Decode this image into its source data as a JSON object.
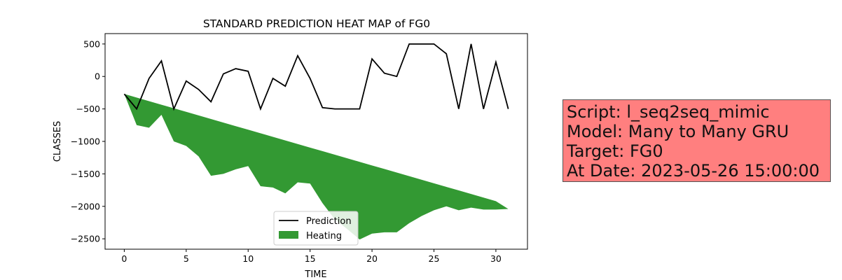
{
  "chart_data": {
    "type": "line",
    "title": "STANDARD PREDICTION HEAT MAP of FG0",
    "xlabel": "TIME",
    "ylabel": "CLASSES",
    "xlim": [
      -1.55,
      32.55
    ],
    "ylim": [
      -2660,
      660
    ],
    "xticks": [
      0,
      5,
      10,
      15,
      20,
      25,
      30
    ],
    "yticks": [
      500,
      0,
      -500,
      -1000,
      -1500,
      -2000,
      -2500
    ],
    "grid": false,
    "legend_position": "bottom-center",
    "series": [
      {
        "name": "Prediction",
        "kind": "line",
        "color": "#000000",
        "x": [
          0,
          1,
          2,
          3,
          4,
          5,
          6,
          7,
          8,
          9,
          10,
          11,
          12,
          13,
          14,
          15,
          16,
          17,
          18,
          19,
          20,
          21,
          22,
          23,
          24,
          25,
          26,
          27,
          28,
          29,
          30,
          31
        ],
        "y": [
          -270,
          -500,
          -30,
          240,
          -500,
          -70,
          -200,
          -390,
          40,
          120,
          80,
          -500,
          -30,
          -150,
          320,
          -30,
          -480,
          -500,
          -500,
          -500,
          270,
          50,
          0,
          500,
          500,
          500,
          350,
          -500,
          500,
          -500,
          220,
          -500
        ]
      },
      {
        "name": "Heating",
        "kind": "area",
        "color": "#339933",
        "x": [
          0,
          1,
          2,
          3,
          4,
          5,
          6,
          7,
          8,
          9,
          10,
          11,
          12,
          13,
          14,
          15,
          16,
          17,
          18,
          19,
          20,
          21,
          22,
          23,
          24,
          25,
          26,
          27,
          28,
          29,
          30,
          31
        ],
        "y_upper": [
          -270,
          -325,
          -380,
          -435,
          -490,
          -545,
          -600,
          -655,
          -710,
          -765,
          -820,
          -875,
          -930,
          -985,
          -1040,
          -1095,
          -1150,
          -1205,
          -1260,
          -1315,
          -1370,
          -1425,
          -1480,
          -1535,
          -1590,
          -1645,
          -1700,
          -1755,
          -1810,
          -1865,
          -1920,
          -2040
        ],
        "y_lower": [
          -270,
          -750,
          -790,
          -590,
          -1000,
          -1070,
          -1230,
          -1530,
          -1500,
          -1430,
          -1380,
          -1690,
          -1710,
          -1800,
          -1630,
          -1650,
          -1950,
          -2200,
          -2350,
          -2510,
          -2420,
          -2400,
          -2400,
          -2260,
          -2150,
          -2060,
          -2000,
          -2060,
          -2020,
          -2050,
          -2050,
          -2040
        ]
      }
    ]
  },
  "info": {
    "script_line": "Script: l_seq2seq_mimic",
    "model_line": "Model: Many to Many GRU",
    "target_line": "Target: FG0",
    "date_line": "At Date: 2023-05-26 15:00:00"
  }
}
